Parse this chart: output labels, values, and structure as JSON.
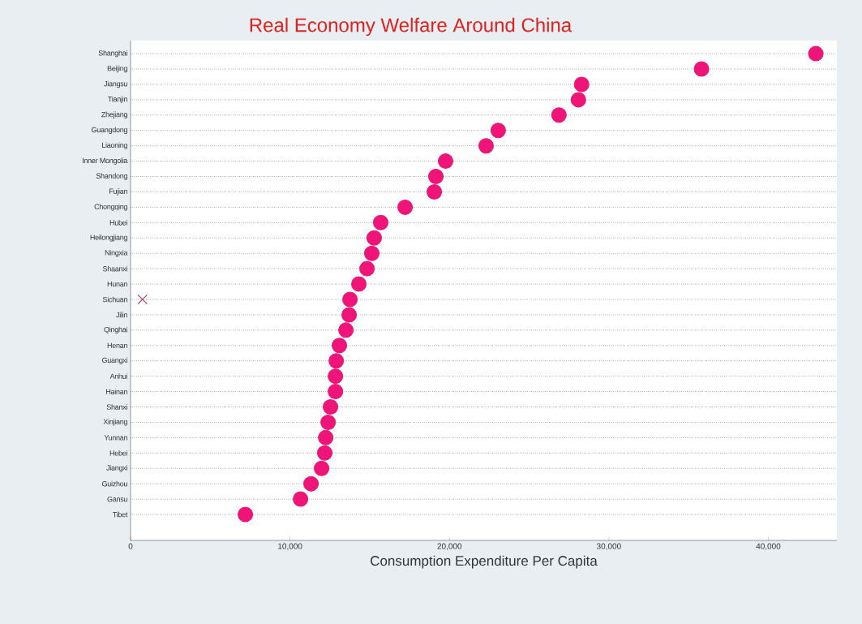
{
  "chart_data": {
    "type": "scatter",
    "title": "Real Economy Welfare Around China",
    "xlabel": "Consumption Expenditure Per Capita",
    "orientation": "horizontal",
    "categories": [
      "Shanghai",
      "Beijing",
      "Jiangsu",
      "Tianjin",
      "Zhejiang",
      "Guangdong",
      "Liaoning",
      "Inner Mongolia",
      "Shandong",
      "Fujian",
      "Chongqing",
      "Hubei",
      "Heilongjiang",
      "Ningxia",
      "Shaanxi",
      "Hunan",
      "Sichuan",
      "Jilin",
      "Qinghai",
      "Henan",
      "Guangxi",
      "Anhui",
      "Hainan",
      "Shanxi",
      "Xinjiang",
      "Yunnan",
      "Hebei",
      "Jiangxi",
      "Guizhou",
      "Gansu",
      "Tibet"
    ],
    "series": [
      {
        "color": "#ee1478",
        "marker": "circle",
        "values": [
          42980,
          35810,
          28290,
          28090,
          26870,
          23060,
          22300,
          19760,
          19150,
          19050,
          17220,
          15690,
          15280,
          15130,
          14830,
          14320,
          13760,
          13710,
          13510,
          13100,
          12900,
          12850,
          12850,
          12540,
          12390,
          12240,
          12180,
          11980,
          11320,
          10660,
          7200
        ]
      },
      {
        "color": "#b02a4a",
        "marker": "cross",
        "values": [
          null,
          null,
          null,
          null,
          null,
          null,
          null,
          null,
          null,
          null,
          null,
          null,
          null,
          null,
          null,
          null,
          750,
          null,
          null,
          null,
          null,
          null,
          null,
          null,
          null,
          null,
          null,
          null,
          null,
          null,
          null
        ]
      }
    ],
    "xlim": [
      0,
      44300
    ],
    "xticks": [
      0,
      {
        "value": 10000,
        "label": "10,000"
      },
      {
        "value": 20000,
        "label": "20,000"
      },
      {
        "value": 30000,
        "label": "30,000"
      },
      {
        "value": 40000,
        "label": "40,000"
      }
    ],
    "grid": "y",
    "line_style": "dotted"
  }
}
